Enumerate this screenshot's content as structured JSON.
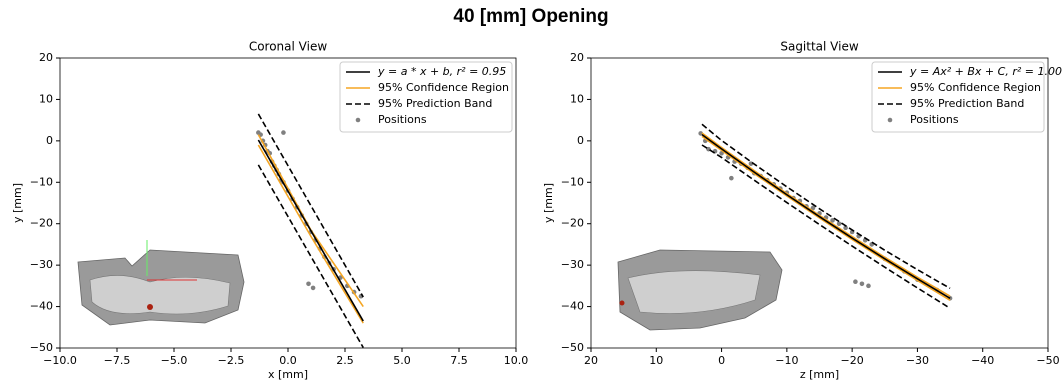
{
  "title": "40 [mm] Opening",
  "chart_data": [
    {
      "type": "line",
      "title": "Coronal View",
      "x_label": "x [mm]",
      "y_label": "y [mm]",
      "xlim": [
        -10,
        10
      ],
      "xticks": [
        {
          "value": -10,
          "label": "−10.0"
        },
        {
          "value": -7.5,
          "label": "−7.5"
        },
        {
          "value": -5,
          "label": "−5.0"
        },
        {
          "value": -2.5,
          "label": "−2.5"
        },
        {
          "value": 0,
          "label": "0.0"
        },
        2.5,
        {
          "value": 5,
          "label": "5.0"
        },
        7.5,
        {
          "value": 10,
          "label": "10.0"
        }
      ],
      "ylim": [
        -50,
        20
      ],
      "yticks": [
        {
          "value": -50,
          "label": "−50"
        },
        {
          "value": -40,
          "label": "−40"
        },
        {
          "value": -30,
          "label": "−30"
        },
        {
          "value": -20,
          "label": "−20"
        },
        {
          "value": -10,
          "label": "−10"
        },
        0,
        10,
        20
      ],
      "legend": "upper right",
      "series": [
        {
          "name": "y = a * x + b, r² = 0.95",
          "kind": "line",
          "linestyle": "solid",
          "color": "#000000",
          "x": [
            -1.3,
            3.3
          ],
          "values": [
            0.2,
            -43.5
          ]
        },
        {
          "name": "95% Confidence Region",
          "kind": "band",
          "linestyle": "solid",
          "color": "#f5a623",
          "x": [
            -1.3,
            1.0,
            3.3
          ],
          "upper": [
            1.5,
            -21.5,
            -40.0
          ],
          "lower": [
            -1.0,
            -23.0,
            -44.0
          ]
        },
        {
          "name": "95% Prediction Band",
          "kind": "band",
          "linestyle": "dashed",
          "color": "#000000",
          "x": [
            -1.3,
            3.3
          ],
          "upper": [
            6.5,
            -37.7
          ],
          "lower": [
            -5.8,
            -49.9
          ]
        },
        {
          "name": "Positions",
          "kind": "scatter",
          "color": "#808080",
          "x": [
            -1.3,
            -1.2,
            -1.1,
            -1.0,
            -0.9,
            -0.8,
            -0.7,
            -0.6,
            -0.5,
            -0.4,
            -0.3,
            -0.2,
            0,
            0.2,
            0.4,
            0.6,
            0.8,
            1.0,
            1.2,
            1.4,
            1.6,
            1.8,
            2.0,
            2.3,
            2.6,
            2.9,
            3.2,
            0.9,
            1.1,
            -0.2
          ],
          "values": [
            2,
            1.5,
            0,
            -1,
            -2.5,
            -3,
            -5,
            -6,
            -7,
            -8,
            -9.5,
            -10,
            -12,
            -14,
            -16,
            -18,
            -20,
            -22,
            -24,
            -26,
            -28,
            -29.5,
            -31,
            -33,
            -35,
            -36.5,
            -37.5,
            -34.5,
            -35.5,
            2
          ]
        }
      ]
    },
    {
      "type": "line",
      "title": "Sagittal View",
      "x_label": "z [mm]",
      "y_label": "y [mm]",
      "xlim": [
        20,
        -50
      ],
      "xticks": [
        20,
        10,
        0,
        {
          "value": -10,
          "label": "−10"
        },
        {
          "value": -20,
          "label": "−20"
        },
        {
          "value": -30,
          "label": "−30"
        },
        {
          "value": -40,
          "label": "−40"
        },
        {
          "value": -50,
          "label": "−50"
        }
      ],
      "ylim": [
        -50,
        20
      ],
      "yticks": [
        {
          "value": -50,
          "label": "−50"
        },
        {
          "value": -40,
          "label": "−40"
        },
        {
          "value": -30,
          "label": "−30"
        },
        {
          "value": -20,
          "label": "−20"
        },
        {
          "value": -10,
          "label": "−10"
        },
        0,
        10,
        20
      ],
      "legend": "upper right",
      "series": [
        {
          "name": "y = Ax² + Bx + C, r² = 1.00",
          "kind": "line",
          "linestyle": "solid",
          "color": "#000000",
          "x": [
            3,
            0,
            -5,
            -10,
            -15,
            -20,
            -25,
            -30,
            -35
          ],
          "values": [
            1.5,
            -1.94,
            -7.55,
            -13.01,
            -18.31,
            -23.46,
            -28.47,
            -33.31,
            -38.01
          ]
        },
        {
          "name": "95% Confidence Region",
          "kind": "band",
          "linestyle": "solid",
          "color": "#f5a623",
          "x": [
            3,
            0,
            -5,
            -10,
            -15,
            -20,
            -25,
            -30,
            -35
          ],
          "upper": [
            1.9,
            -1.6,
            -7.2,
            -12.7,
            -18.0,
            -23.1,
            -28.1,
            -32.9,
            -37.5
          ],
          "lower": [
            1.1,
            -2.3,
            -7.9,
            -13.3,
            -18.6,
            -23.8,
            -28.8,
            -33.7,
            -38.5
          ]
        },
        {
          "name": "95% Prediction Band",
          "kind": "band",
          "linestyle": "dashed",
          "color": "#000000",
          "x": [
            3,
            0,
            -5,
            -10,
            -15,
            -20,
            -25,
            -30,
            -35
          ],
          "upper": [
            4.0,
            0.1,
            -5.6,
            -11.1,
            -16.4,
            -21.5,
            -26.4,
            -31.1,
            -35.6
          ],
          "lower": [
            -1.0,
            -4.0,
            -9.5,
            -14.9,
            -20.2,
            -25.4,
            -30.5,
            -35.5,
            -40.4
          ]
        },
        {
          "name": "Positions",
          "kind": "scatter",
          "color": "#808080",
          "x": [
            3.2,
            2.5,
            2,
            1,
            0,
            -1,
            -2,
            -3,
            -4,
            -5,
            -6,
            -7,
            -8,
            -9,
            -10,
            -11,
            -12,
            -13,
            -14,
            -15,
            -16,
            -17,
            -18,
            -19,
            -20,
            -21,
            -22,
            -23,
            -20.5,
            -21.5,
            -22.5,
            -25,
            -28,
            -30,
            -33,
            -35,
            -1.5,
            -4.5
          ],
          "values": [
            1.8,
            0,
            -2,
            -2.5,
            -3,
            -4,
            -5,
            -5.5,
            -6.5,
            -7.8,
            -8.5,
            -9.5,
            -10.5,
            -11.5,
            -12.5,
            -13.8,
            -14.5,
            -15.8,
            -16.2,
            -17.5,
            -18.5,
            -19.2,
            -20,
            -21,
            -22,
            -23,
            -24,
            -25,
            -34,
            -34.5,
            -35,
            -28.5,
            -31.5,
            -33.5,
            -36,
            -38,
            -9,
            -5.5
          ]
        }
      ]
    }
  ]
}
